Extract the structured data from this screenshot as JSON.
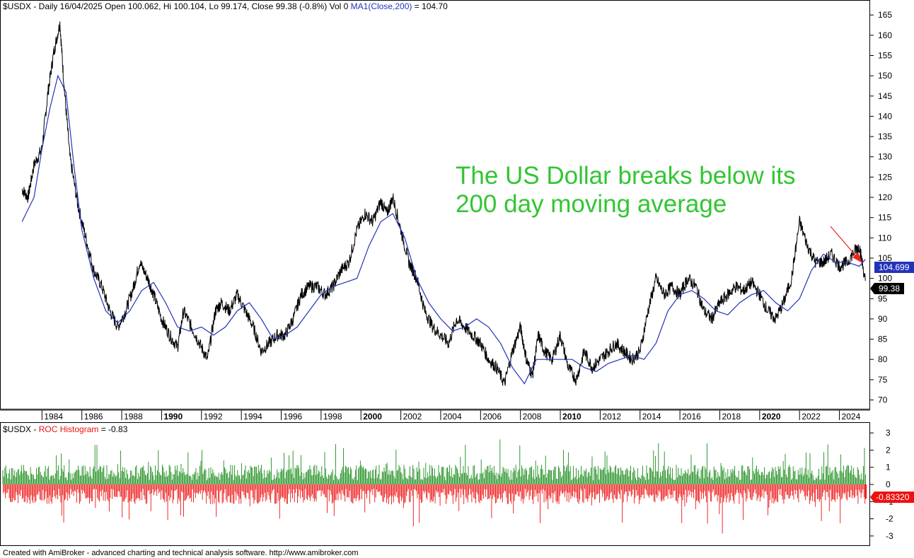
{
  "header": {
    "symbol": "$USDX",
    "info": " - Daily 16/04/2025 Open 100.062, Hi 100.104, Lo 99.174, Close 99.38 (-0.8%) Vol 0 ",
    "ma_label": "MA1(Close,200)",
    "ma_value": " = 104.70"
  },
  "roc_header": {
    "symbol": "$USDX",
    "sep": " - ",
    "label": "ROC Histogram",
    "value": " = -0.83"
  },
  "annotation": {
    "line1": "The US Dollar breaks below its",
    "line2": "200 day moving average"
  },
  "footer": "Created with AmiBroker - advanced charting and technical analysis software. http://www.amibroker.com",
  "colors": {
    "price": "#000000",
    "ma": "#2233bb",
    "roc_up": "#1a8c1a",
    "roc_down": "#ee1111",
    "annotation": "#33c533",
    "arrow": "#ee2222"
  },
  "chart_data": [
    {
      "type": "line",
      "series": [
        {
          "name": "$USDX",
          "color": "#000000",
          "x": [
            1983.0,
            1983.3,
            1983.6,
            1984.0,
            1984.3,
            1984.6,
            1984.9,
            1985.1,
            1985.4,
            1985.8,
            1986.2,
            1986.6,
            1987.0,
            1987.4,
            1987.8,
            1988.2,
            1988.6,
            1988.9,
            1989.3,
            1989.6,
            1990.0,
            1990.4,
            1990.8,
            1991.1,
            1991.5,
            1991.9,
            1992.3,
            1992.7,
            1993.0,
            1993.4,
            1993.8,
            1994.2,
            1994.6,
            1995.0,
            1995.4,
            1995.8,
            1996.2,
            1996.6,
            1997.0,
            1997.4,
            1997.8,
            1998.2,
            1998.6,
            1999.0,
            1999.4,
            1999.8,
            2000.2,
            2000.6,
            2001.0,
            2001.3,
            2001.6,
            2002.0,
            2002.4,
            2002.8,
            2003.2,
            2003.6,
            2004.0,
            2004.4,
            2004.8,
            2005.2,
            2005.6,
            2006.0,
            2006.4,
            2006.8,
            2007.2,
            2007.6,
            2008.0,
            2008.3,
            2008.6,
            2008.9,
            2009.2,
            2009.6,
            2010.0,
            2010.4,
            2010.8,
            2011.2,
            2011.6,
            2012.0,
            2012.4,
            2012.8,
            2013.2,
            2013.6,
            2014.0,
            2014.4,
            2014.8,
            2015.2,
            2015.6,
            2016.0,
            2016.4,
            2016.8,
            2017.2,
            2017.6,
            2018.0,
            2018.4,
            2018.8,
            2019.2,
            2019.6,
            2020.0,
            2020.4,
            2020.8,
            2021.2,
            2021.6,
            2022.0,
            2022.4,
            2022.8,
            2023.2,
            2023.6,
            2024.0,
            2024.4,
            2024.8,
            2025.0,
            2025.3
          ],
          "y": [
            122,
            120,
            128,
            132,
            146,
            156,
            163,
            148,
            130,
            118,
            110,
            102,
            98,
            92,
            88,
            92,
            98,
            104,
            100,
            96,
            90,
            86,
            83,
            92,
            88,
            84,
            80,
            92,
            94,
            92,
            96,
            92,
            88,
            82,
            84,
            86,
            86,
            90,
            96,
            98,
            98,
            96,
            98,
            102,
            104,
            112,
            116,
            114,
            119,
            116,
            120,
            112,
            104,
            100,
            92,
            88,
            86,
            84,
            90,
            88,
            86,
            84,
            80,
            78,
            74,
            82,
            88,
            80,
            76,
            86,
            82,
            80,
            86,
            78,
            75,
            82,
            78,
            80,
            82,
            84,
            82,
            80,
            82,
            92,
            100,
            96,
            98,
            96,
            100,
            98,
            92,
            90,
            94,
            96,
            98,
            97,
            99,
            96,
            92,
            90,
            94,
            100,
            114,
            108,
            104,
            104,
            106,
            103,
            104,
            107,
            108,
            99.4
          ]
        },
        {
          "name": "MA1(Close,200)",
          "color": "#2233bb",
          "x": [
            1983.0,
            1983.6,
            1984.0,
            1984.4,
            1984.8,
            1985.2,
            1985.6,
            1986.0,
            1986.6,
            1987.2,
            1987.8,
            1988.4,
            1989.0,
            1989.6,
            1990.2,
            1990.8,
            1991.4,
            1992.0,
            1992.6,
            1993.2,
            1993.8,
            1994.4,
            1995.0,
            1995.6,
            1996.2,
            1996.8,
            1997.4,
            1998.0,
            1998.6,
            1999.2,
            1999.8,
            2000.4,
            2001.0,
            2001.6,
            2002.2,
            2002.8,
            2003.4,
            2004.0,
            2004.6,
            2005.2,
            2005.8,
            2006.4,
            2007.0,
            2007.6,
            2008.2,
            2008.8,
            2009.4,
            2010.0,
            2010.6,
            2011.2,
            2011.8,
            2012.4,
            2013.0,
            2013.6,
            2014.2,
            2014.8,
            2015.4,
            2016.0,
            2016.6,
            2017.2,
            2017.8,
            2018.4,
            2019.0,
            2019.6,
            2020.2,
            2020.8,
            2021.4,
            2022.0,
            2022.6,
            2023.2,
            2023.8,
            2024.4,
            2025.0,
            2025.3
          ],
          "y": [
            114,
            120,
            132,
            142,
            150,
            146,
            128,
            112,
            100,
            92,
            89,
            92,
            97,
            99,
            94,
            88,
            87,
            88,
            86,
            88,
            92,
            94,
            90,
            85,
            86,
            88,
            92,
            96,
            98,
            99,
            100,
            108,
            114,
            116,
            110,
            100,
            94,
            90,
            87,
            88,
            90,
            88,
            84,
            78,
            74,
            80,
            80,
            80,
            80,
            78,
            77,
            79,
            80,
            81,
            80,
            84,
            92,
            96,
            97,
            95,
            92,
            91,
            94,
            96,
            97,
            94,
            92,
            95,
            102,
            106,
            104,
            104,
            103,
            104.7
          ]
        }
      ],
      "ylim": [
        68,
        168
      ],
      "xlim": [
        1982.0,
        2025.4
      ],
      "yticks": [
        70,
        75,
        80,
        85,
        90,
        95,
        100,
        105,
        110,
        115,
        120,
        125,
        130,
        135,
        140,
        145,
        150,
        155,
        160,
        165
      ],
      "xticks": [
        "1984",
        "1986",
        "1988",
        "1990",
        "1992",
        "1994",
        "1996",
        "1998",
        "2000",
        "2002",
        "2004",
        "2006",
        "2008",
        "2010",
        "2012",
        "2014",
        "2016",
        "2018",
        "2020",
        "2022",
        "2024"
      ],
      "last_labels": {
        "ma": "104.699",
        "close": "99.38"
      }
    },
    {
      "type": "bar",
      "title": "ROC Histogram",
      "ylim": [
        -3.5,
        3.5
      ],
      "yticks": [
        -3,
        -2,
        -1,
        0,
        1,
        2,
        3
      ],
      "last_value": -0.8332,
      "last_label": "-0.83320"
    }
  ]
}
